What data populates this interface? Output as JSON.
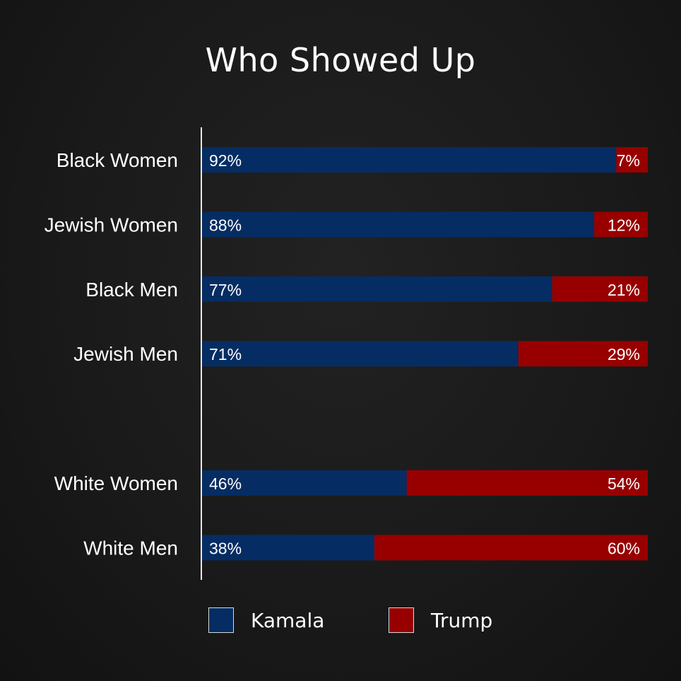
{
  "chart_data": {
    "type": "bar",
    "orientation": "horizontal",
    "stacked": true,
    "title": "Who Showed Up",
    "categories": [
      "Black Women",
      "Jewish Women",
      "Black Men",
      "Jewish Men",
      "",
      "White Women",
      "White Men"
    ],
    "series": [
      {
        "name": "Kamala",
        "color": "#052d63",
        "values": [
          92,
          88,
          77,
          71,
          null,
          46,
          38
        ],
        "labels": [
          "92%",
          "88%",
          "77%",
          "71%",
          "",
          "46%",
          "38%"
        ]
      },
      {
        "name": "Trump",
        "color": "#980000",
        "values": [
          7,
          12,
          21,
          29,
          null,
          54,
          60
        ],
        "labels": [
          "7%",
          "12%",
          "21%",
          "29%",
          "",
          "54%",
          "60%"
        ]
      }
    ],
    "xlim": [
      0,
      100
    ],
    "grid": false,
    "legend_position": "bottom"
  }
}
